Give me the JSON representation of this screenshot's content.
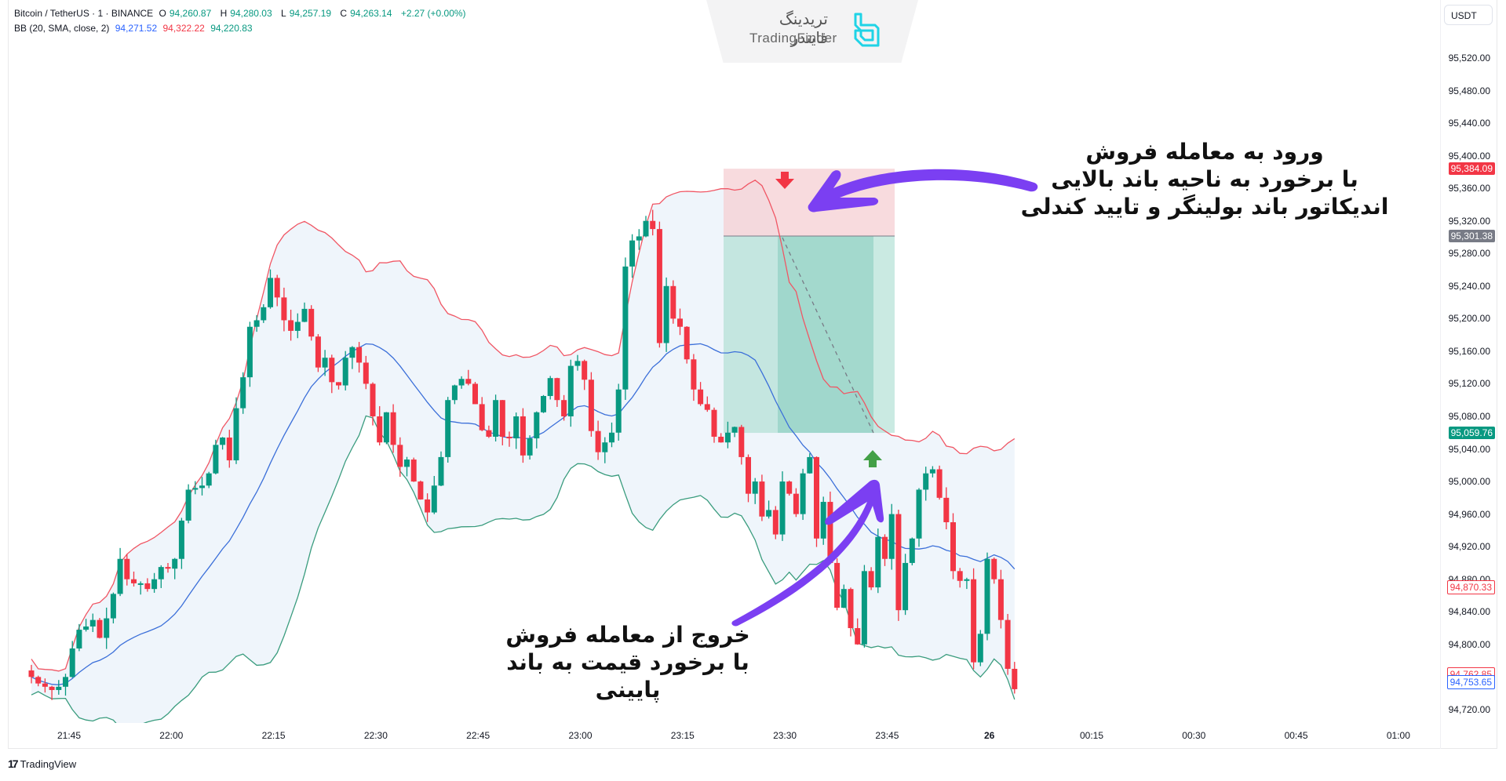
{
  "header": {
    "symbol": "Bitcoin / TetherUS · 1 · BINANCE",
    "ohlc": {
      "o_label": "O",
      "o": "94,260.87",
      "h_label": "H",
      "h": "94,280.03",
      "l_label": "L",
      "l": "94,257.19",
      "c_label": "C",
      "c": "94,263.14",
      "change": "+2.27 (+0.00%)"
    },
    "indicator": {
      "name": "BB (20, SMA, close, 2)",
      "basis": "94,271.52",
      "upper": "94,322.22",
      "lower": "94,220.83"
    }
  },
  "watermark": {
    "fa": "تریدینگ فایندر",
    "en": "TradingFinder"
  },
  "price_axis": {
    "currency": "USDT",
    "ticks": [
      "95,520.00",
      "95,480.00",
      "95,440.00",
      "95,400.00",
      "95,360.00",
      "95,320.00",
      "95,280.00",
      "95,240.00",
      "95,200.00",
      "95,160.00",
      "95,120.00",
      "95,080.00",
      "95,040.00",
      "95,000.00",
      "94,960.00",
      "94,920.00",
      "94,880.00",
      "94,840.00",
      "94,800.00",
      "94,760.00",
      "94,720.00"
    ],
    "badges": [
      {
        "value": "95,384.09",
        "price": 95384.09,
        "style": "solid",
        "color": "#f23645"
      },
      {
        "value": "95,301.38",
        "price": 95301.38,
        "style": "solid",
        "color": "#787b86"
      },
      {
        "value": "95,059.76",
        "price": 95059.76,
        "style": "solid",
        "color": "#089981"
      },
      {
        "value": "94,870.33",
        "price": 94870.33,
        "style": "outline",
        "color": "#f23645"
      },
      {
        "value": "94,762.85",
        "price": 94762.85,
        "style": "outline",
        "color": "#f23645"
      },
      {
        "value": "94,753.65",
        "price": 94753.65,
        "style": "outline",
        "color": "#2962ff"
      }
    ]
  },
  "time_axis": {
    "ticks": [
      "21:45",
      "22:00",
      "22:15",
      "22:30",
      "22:45",
      "23:00",
      "23:15",
      "23:30",
      "23:45",
      "26",
      "00:15",
      "00:30",
      "00:45",
      "01:00"
    ]
  },
  "annotations": {
    "entry": {
      "line1": "ورود به معامله فروش",
      "line2": "با برخورد به ناحیه باند بالایی",
      "line3": "اندیکاتور باند بولینگر و تایید کندلی"
    },
    "exit": {
      "line1": "خروج از معامله فروش",
      "line2": "با برخورد قیمت به باند پایینی"
    }
  },
  "position_tool": {
    "type": "short",
    "entry": 95301.38,
    "stop": 95384.09,
    "target": 95059.76
  },
  "colors": {
    "up": "#089981",
    "down": "#f23645",
    "basis": "#2962ff",
    "upper": "#f23645",
    "lower": "#089981",
    "arrow": "#7b3ff2",
    "band_fill": "#f0f6fc"
  },
  "footer": {
    "brand": "TradingView"
  },
  "chart_data": {
    "type": "candlestick",
    "title": "Bitcoin / TetherUS · 1 · BINANCE",
    "xlabel": "",
    "ylabel": "USDT",
    "ylim": [
      94700,
      95560
    ],
    "x_ticks": [
      "21:45",
      "22:00",
      "22:15",
      "22:30",
      "22:45",
      "23:00",
      "23:15",
      "23:30",
      "23:45",
      "26",
      "00:15",
      "00:30",
      "00:45",
      "01:00"
    ],
    "indicator": "Bollinger Bands (20, SMA, close, 2)",
    "series": [
      {
        "name": "close",
        "values": [
          94760,
          94752,
          94748,
          94744,
          94748,
          94760,
          94795,
          94818,
          94822,
          94830,
          94808,
          94832,
          94862,
          94905,
          94880,
          94875,
          94875,
          94868,
          94880,
          94895,
          94893,
          94905,
          94952,
          94990,
          94992,
          94995,
          95010,
          95045,
          95054,
          95026,
          95090,
          95128,
          95190,
          95198,
          95214,
          95250,
          95226,
          95198,
          95185,
          95196,
          95212,
          95178,
          95140,
          95152,
          95122,
          95118,
          95152,
          95165,
          95146,
          95120,
          95080,
          95048,
          95085,
          95045,
          95018,
          95027,
          95000,
          94978,
          94962,
          94995,
          95030,
          95100,
          95118,
          95126,
          95120,
          95095,
          95063,
          95055,
          95100,
          95055,
          95053,
          95080,
          95032,
          95053,
          95085,
          95105,
          95127,
          95100,
          95080,
          95142,
          95148,
          95125,
          95062,
          95036,
          95048,
          95060,
          95113,
          95264,
          95296,
          95301,
          95320,
          95310,
          95170,
          95240,
          95200,
          95190,
          95150,
          95113,
          95095,
          95088,
          95055,
          95048,
          95060,
          95067,
          95030,
          94985,
          95000,
          94957,
          94965,
          94935,
          95000,
          94985,
          94960,
          95010,
          95030,
          94930,
          94975,
          94900,
          94845,
          94868,
          94820,
          94800,
          94890,
          94870,
          94932,
          94905,
          94960,
          94842,
          94900,
          94930,
          94990,
          95010,
          95015,
          94980,
          94950,
          94890,
          94878,
          94880,
          94778,
          94813,
          94905,
          94880,
          94830,
          94770,
          94745
        ]
      },
      {
        "name": "bb_upper",
        "values": "see svg path"
      },
      {
        "name": "bb_basis",
        "values": "see svg path"
      },
      {
        "name": "bb_lower",
        "values": "see svg path"
      }
    ]
  }
}
